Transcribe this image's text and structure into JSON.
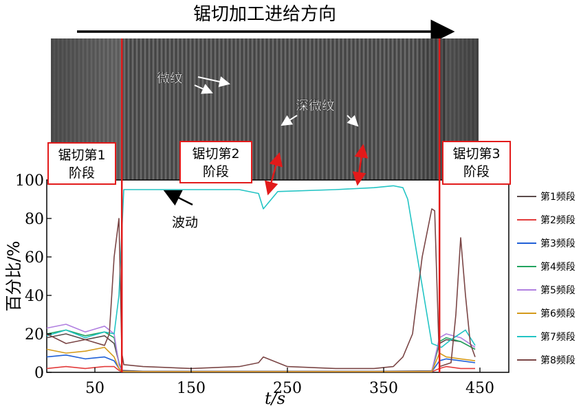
{
  "figure": {
    "top_label": "锯切加工进给方向",
    "photo": {
      "labels": {
        "micro": "微纹",
        "deep": "深微纹"
      }
    },
    "stages": [
      {
        "line1": "锯切第1",
        "line2": "阶段"
      },
      {
        "line1": "锯切第2",
        "line2": "阶段"
      },
      {
        "line1": "锯切第3",
        "line2": "阶段"
      }
    ],
    "annotation": "波动",
    "colors": {
      "red": "#e21a1a",
      "photo_dark": "#3e3e3e",
      "photo_light": "#8a8a8a"
    }
  },
  "chart_data": {
    "type": "line",
    "title": "",
    "xlabel": "t/s",
    "ylabel": "百分比/%",
    "xlim": [
      0,
      480
    ],
    "ylim": [
      0,
      100
    ],
    "xticks": [
      50,
      150,
      250,
      350,
      450
    ],
    "yticks": [
      0,
      20,
      40,
      60,
      80,
      100
    ],
    "grid": false,
    "legend": "right",
    "stage_boundaries_s": [
      78,
      408
    ],
    "series": [
      {
        "name": "第1频段",
        "color": "#5a4a4a",
        "x": [
          0,
          20,
          40,
          60,
          70,
          75,
          78,
          100,
          200,
          300,
          350,
          400,
          408,
          415,
          430,
          445
        ],
        "y": [
          18,
          20,
          17,
          19,
          15,
          5,
          1,
          0.6,
          0.6,
          0.6,
          0.6,
          0.8,
          15,
          17,
          16,
          12
        ]
      },
      {
        "name": "第2频段",
        "color": "#e23a3a",
        "x": [
          0,
          20,
          40,
          60,
          70,
          75,
          78,
          100,
          200,
          300,
          350,
          400,
          408,
          415,
          430,
          445
        ],
        "y": [
          2,
          3,
          2,
          3,
          3,
          1,
          0.3,
          0.3,
          0.3,
          0.3,
          0.3,
          0.3,
          2,
          3,
          2,
          2
        ]
      },
      {
        "name": "第3频段",
        "color": "#1f5fd6",
        "x": [
          0,
          20,
          40,
          60,
          70,
          75,
          78,
          100,
          200,
          300,
          350,
          400,
          408,
          415,
          430,
          445
        ],
        "y": [
          8,
          9,
          7,
          8,
          6,
          2,
          0.4,
          0.4,
          0.4,
          0.4,
          0.4,
          0.4,
          6,
          7,
          6,
          5
        ]
      },
      {
        "name": "第4频段",
        "color": "#21a35f",
        "x": [
          0,
          20,
          40,
          60,
          70,
          75,
          78,
          100,
          200,
          300,
          350,
          400,
          408,
          415,
          430,
          445
        ],
        "y": [
          20,
          22,
          19,
          21,
          18,
          5,
          0.5,
          0.5,
          0.5,
          0.5,
          0.5,
          0.5,
          16,
          18,
          16,
          12
        ]
      },
      {
        "name": "第5频段",
        "color": "#b07fe0",
        "x": [
          0,
          20,
          40,
          60,
          70,
          75,
          78,
          100,
          200,
          300,
          350,
          400,
          408,
          415,
          430,
          445
        ],
        "y": [
          23,
          25,
          21,
          24,
          20,
          4,
          0.5,
          0.5,
          0.5,
          0.5,
          0.5,
          0.5,
          18,
          20,
          18,
          13
        ]
      },
      {
        "name": "第6频段",
        "color": "#d49a1a",
        "x": [
          0,
          20,
          40,
          60,
          70,
          75,
          78,
          100,
          200,
          300,
          350,
          400,
          408,
          415,
          430,
          445
        ],
        "y": [
          12,
          10,
          11,
          13,
          8,
          2,
          0.4,
          0.4,
          0.4,
          0.4,
          0.4,
          0.4,
          10,
          8,
          7,
          6
        ]
      },
      {
        "name": "第7频段",
        "color": "#22c4c4",
        "x": [
          0,
          20,
          40,
          60,
          70,
          75,
          80,
          100,
          150,
          200,
          220,
          225,
          240,
          300,
          340,
          360,
          370,
          375,
          380,
          390,
          400,
          410,
          420,
          435,
          445
        ],
        "y": [
          19,
          22,
          18,
          21,
          20,
          40,
          95,
          95,
          95,
          95,
          93,
          85,
          94,
          95,
          96,
          97,
          96,
          90,
          75,
          45,
          15,
          13,
          17,
          22,
          14
        ]
      },
      {
        "name": "第8频段",
        "color": "#7a4545",
        "x": [
          0,
          20,
          40,
          60,
          65,
          70,
          75,
          78,
          80,
          100,
          150,
          200,
          220,
          225,
          250,
          300,
          340,
          360,
          370,
          380,
          385,
          390,
          400,
          403,
          408,
          420,
          425,
          430,
          435,
          440,
          445
        ],
        "y": [
          20,
          15,
          17,
          14,
          20,
          60,
          80,
          10,
          4,
          3,
          2,
          3,
          5,
          8,
          3,
          2,
          2,
          3,
          8,
          20,
          40,
          60,
          85,
          84,
          3,
          5,
          30,
          70,
          40,
          15,
          8
        ]
      }
    ]
  }
}
